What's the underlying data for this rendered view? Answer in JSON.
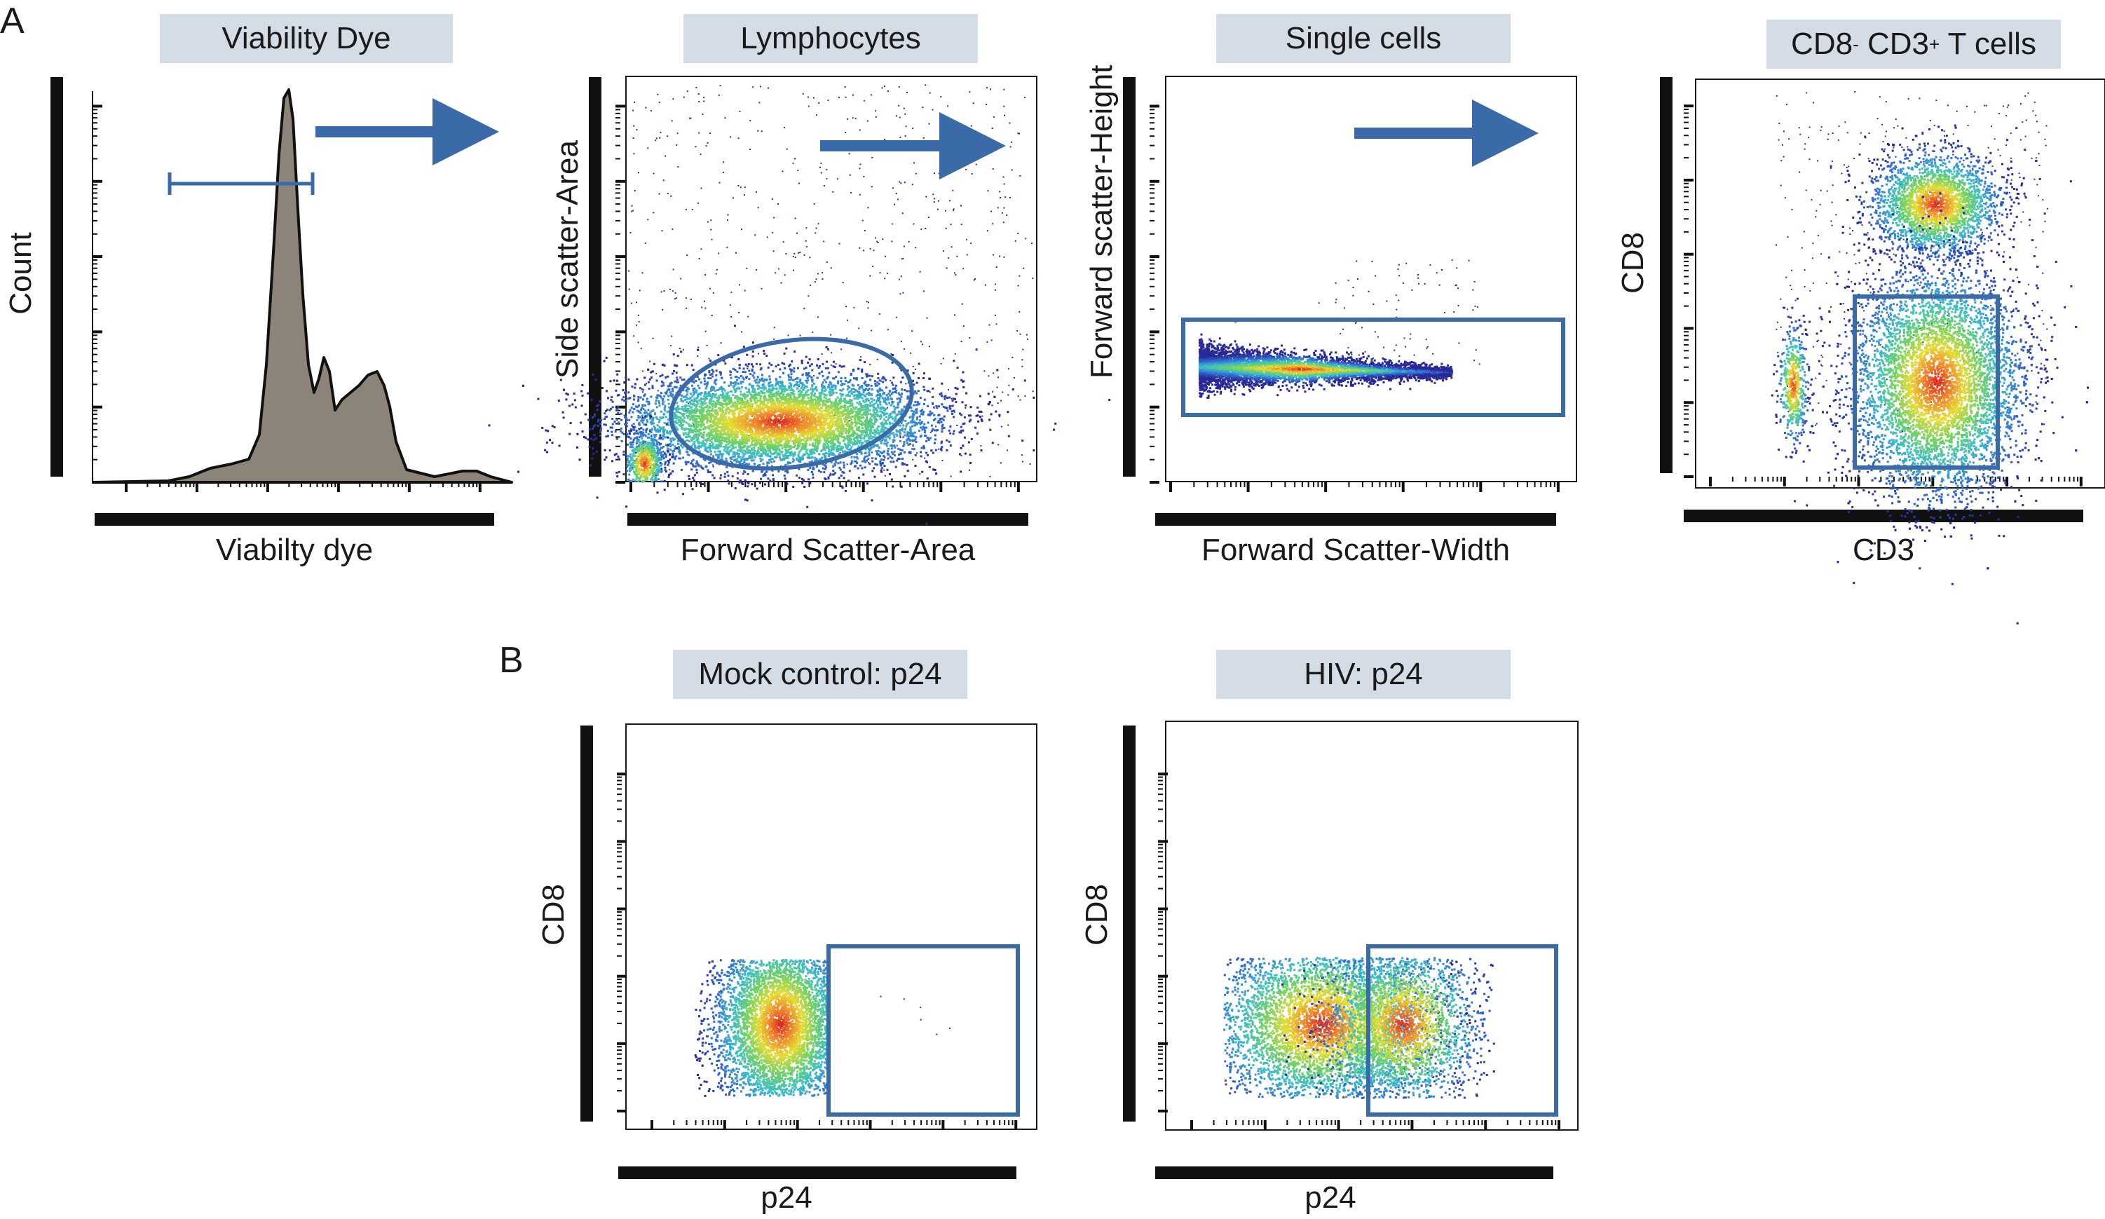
{
  "labels": {
    "panel_a": "A",
    "panel_b": "B"
  },
  "colors": {
    "gate": "#3a6aa8",
    "title_bg": "#d4dde6",
    "histogram_fill": "#8c8479",
    "axis": "#111111"
  },
  "chart_data": [
    {
      "type": "area",
      "title": "Viability Dye",
      "xlabel": "Viabilty dye",
      "ylabel": "Count",
      "gate": "range",
      "arrow": true
    },
    {
      "type": "scatter",
      "title": "Lymphocytes",
      "xlabel": "Forward Scatter-Area",
      "ylabel": "Side scatter-Area",
      "gate": "ellipse",
      "arrow": true
    },
    {
      "type": "scatter",
      "title": "Single cells",
      "xlabel": "Forward Scatter-Width",
      "ylabel": "Forward scatter-Height",
      "gate": "rectangle",
      "arrow": true
    },
    {
      "type": "scatter",
      "title_parts": [
        "CD8",
        "-",
        " CD3",
        "+",
        " T cells"
      ],
      "xlabel": "CD3",
      "ylabel": "CD8",
      "gate": "rectangle",
      "arrow": false
    },
    {
      "type": "scatter",
      "title": "Mock control: p24",
      "xlabel": "p24",
      "ylabel": "CD8",
      "gate": "rectangle"
    },
    {
      "type": "scatter",
      "title": "HIV: p24",
      "xlabel": "p24",
      "ylabel": "CD8",
      "gate": "rectangle"
    }
  ]
}
